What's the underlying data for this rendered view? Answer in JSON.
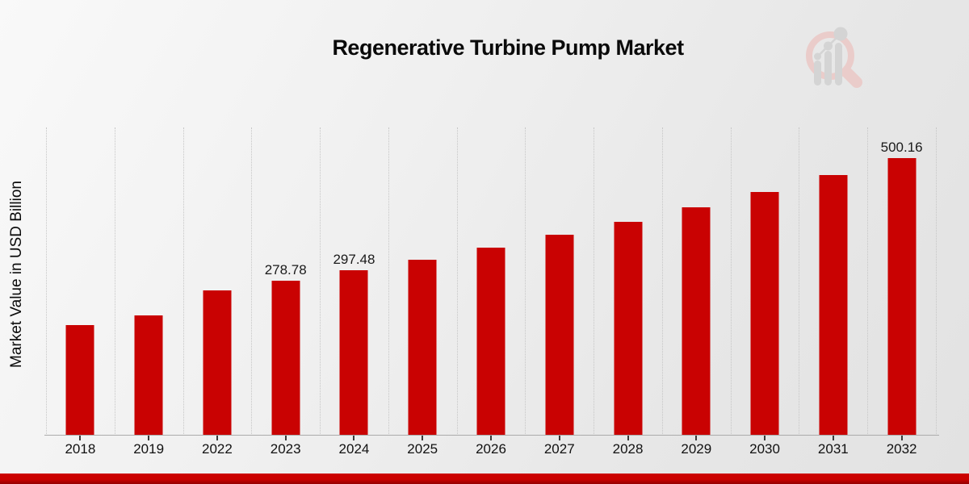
{
  "chart_data": {
    "type": "bar",
    "title": "Regenerative Turbine Pump Market",
    "ylabel": "Market Value in USD Billion",
    "xlabel": "",
    "categories": [
      "2018",
      "2019",
      "2022",
      "2023",
      "2024",
      "2025",
      "2026",
      "2027",
      "2028",
      "2029",
      "2030",
      "2031",
      "2032"
    ],
    "values": [
      199.5,
      216.0,
      261.3,
      278.78,
      297.48,
      317.4,
      338.7,
      361.4,
      385.7,
      411.6,
      439.2,
      468.7,
      500.16
    ],
    "point_labels": [
      "",
      "",
      "",
      "278.78",
      "297.48",
      "",
      "",
      "",
      "",
      "",
      "",
      "",
      "500.16"
    ],
    "ylim": [
      0,
      555
    ],
    "grid": "vertical-dotted",
    "legend": "none",
    "bar_color": "#c90202",
    "axis_line_color": "#ababab",
    "gridline_color": "#c6c6c6",
    "label_color": "#1a1a1a"
  },
  "watermark": {
    "name": "market-research-magnifier-logo",
    "ring_color": "#eaccca",
    "glyph_color": "#d4d4d4"
  },
  "footer": {
    "accent_top": "#cb0100",
    "accent_bottom": "#940000"
  }
}
